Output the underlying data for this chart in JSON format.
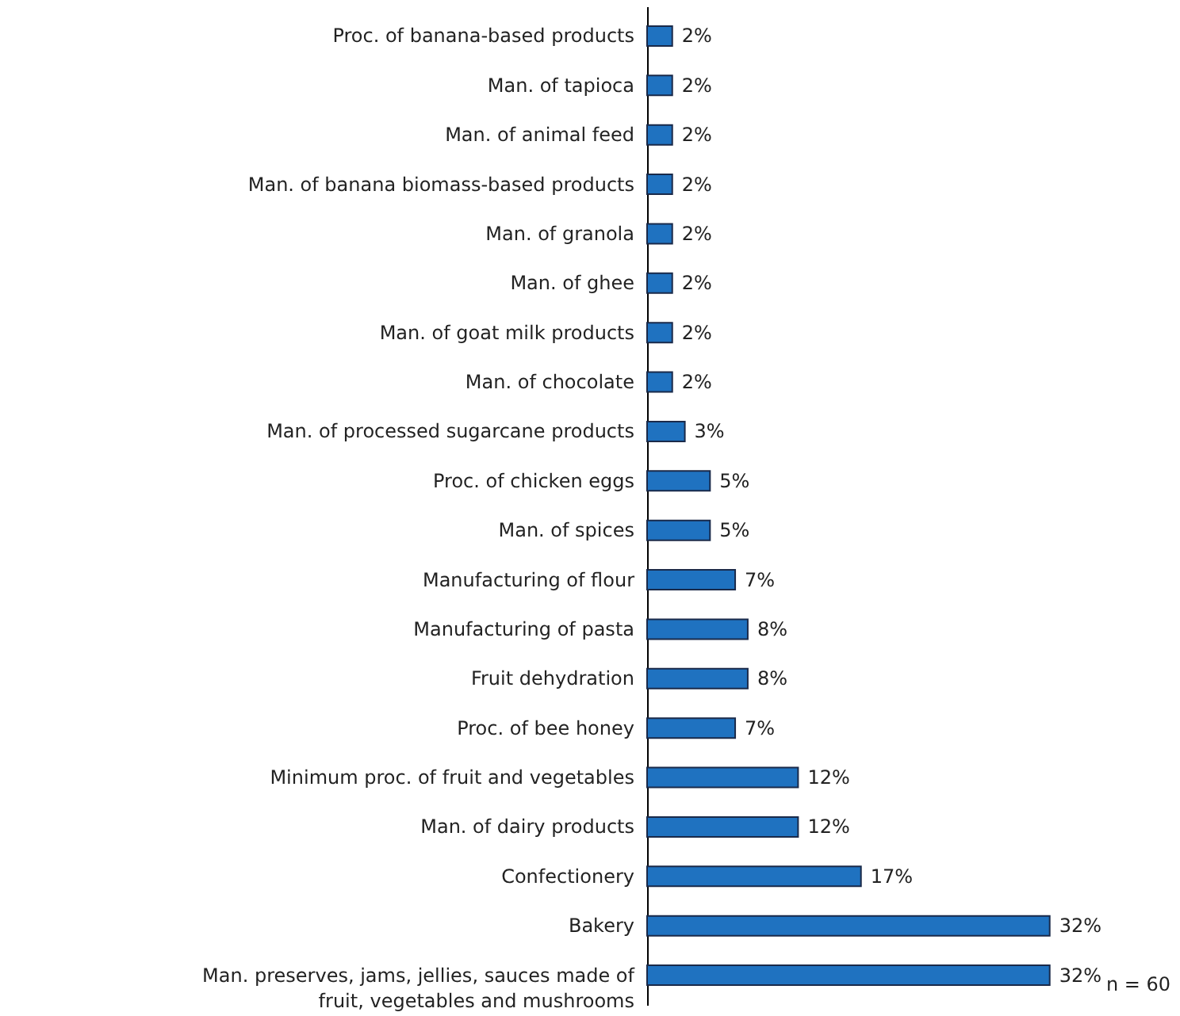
{
  "chart_data": {
    "type": "bar",
    "orientation": "horizontal",
    "categories": [
      "Proc. of banana-based products",
      "Man. of tapioca",
      "Man. of animal feed",
      "Man. of banana biomass-based products",
      "Man. of granola",
      "Man. of ghee",
      "Man. of goat milk products",
      "Man. of chocolate",
      "Man. of processed sugarcane products",
      "Proc. of chicken eggs",
      "Man. of spices",
      "Manufacturing of flour",
      "Manufacturing of pasta",
      "Fruit dehydration",
      "Proc. of bee honey",
      "Minimum proc. of fruit and vegetables",
      "Man. of dairy products",
      "Confectionery",
      "Bakery",
      "Man. preserves, jams, jellies, sauces made of fruit, vegetables and mushrooms"
    ],
    "values": [
      2,
      2,
      2,
      2,
      2,
      2,
      2,
      2,
      3,
      5,
      5,
      7,
      8,
      8,
      7,
      12,
      12,
      17,
      32,
      32
    ],
    "value_labels": [
      "2%",
      "2%",
      "2%",
      "2%",
      "2%",
      "2%",
      "2%",
      "2%",
      "3%",
      "5%",
      "5%",
      "7%",
      "8%",
      "8%",
      "7%",
      "12%",
      "12%",
      "17%",
      "32%",
      "32%"
    ],
    "color": "#1f72c0",
    "annotations": [
      "n = 60"
    ],
    "legend": false
  }
}
